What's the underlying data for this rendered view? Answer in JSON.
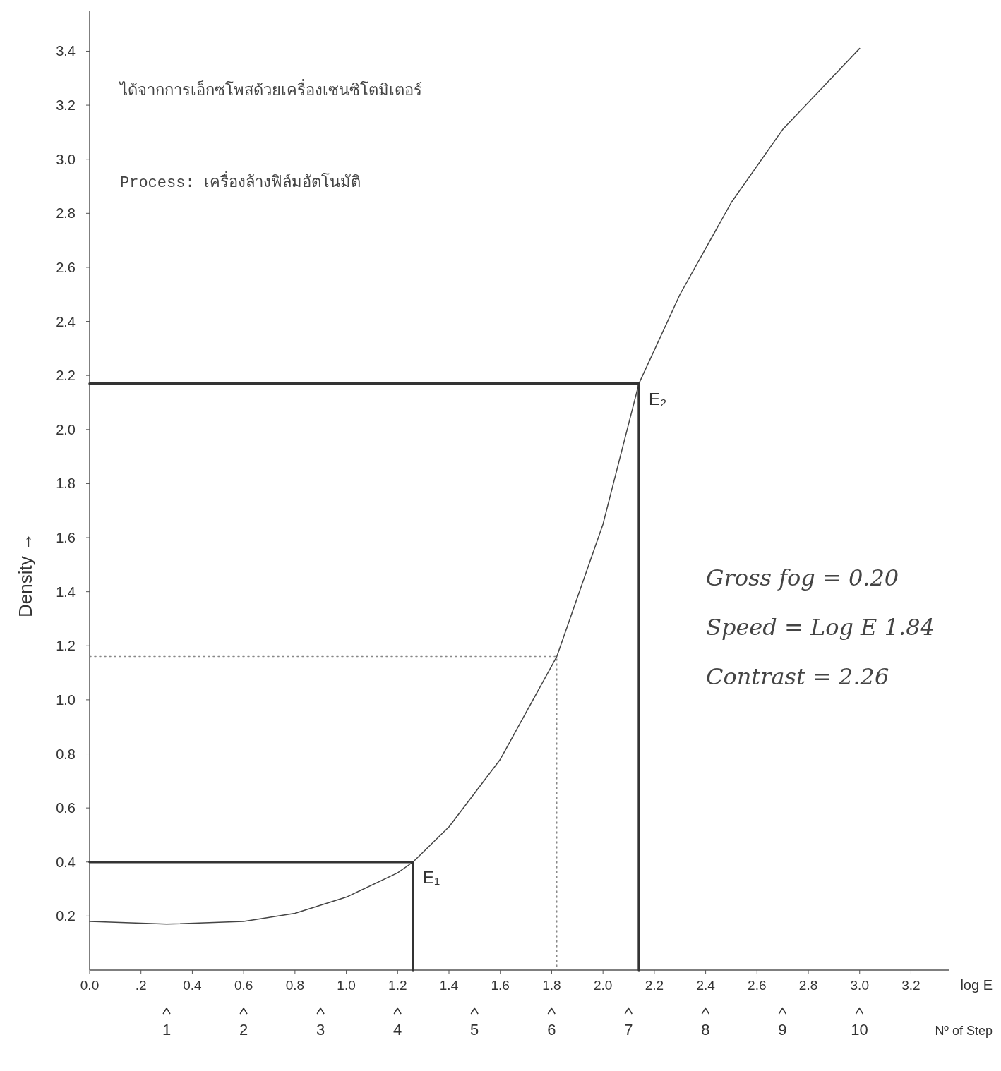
{
  "chart_data": {
    "type": "line",
    "xlabel": "log E",
    "ylabel": "Density →",
    "x2label": "Nº of Step",
    "xlim": [
      0,
      3.35
    ],
    "xticks": [
      {
        "value": 0,
        "label": "0.0"
      },
      {
        "value": 0.2,
        "label": ".2"
      },
      {
        "value": 0.4,
        "label": "0.4"
      },
      {
        "value": 0.6,
        "label": "0.6"
      },
      {
        "value": 0.8,
        "label": "0.8"
      },
      {
        "value": 1.0,
        "label": "1.0"
      },
      {
        "value": 1.2,
        "label": "1.2"
      },
      {
        "value": 1.4,
        "label": "1.4"
      },
      {
        "value": 1.6,
        "label": "1.6"
      },
      {
        "value": 1.8,
        "label": "1.8"
      },
      {
        "value": 2.0,
        "label": "2.0"
      },
      {
        "value": 2.2,
        "label": "2.2"
      },
      {
        "value": 2.4,
        "label": "2.4"
      },
      {
        "value": 2.6,
        "label": "2.6"
      },
      {
        "value": 2.8,
        "label": "2.8"
      },
      {
        "value": 3.0,
        "label": "3.0"
      },
      {
        "value": 3.2,
        "label": "3.2"
      }
    ],
    "x2lim": [
      0,
      11.17
    ],
    "x2ticks": [
      1,
      2,
      3,
      4,
      5,
      6,
      7,
      8,
      9,
      10
    ],
    "ylim": [
      0,
      3.55
    ],
    "yticks": [
      {
        "value": 0.2,
        "label": "0.2"
      },
      {
        "value": 0.4,
        "label": "0.4"
      },
      {
        "value": 0.6,
        "label": "0.6"
      },
      {
        "value": 0.8,
        "label": "0.8"
      },
      {
        "value": 1.0,
        "label": "1.0"
      },
      {
        "value": 1.2,
        "label": "1.2"
      },
      {
        "value": 1.4,
        "label": "1.4"
      },
      {
        "value": 1.6,
        "label": "1.6"
      },
      {
        "value": 1.8,
        "label": "1.8"
      },
      {
        "value": 2.0,
        "label": "2.0"
      },
      {
        "value": 2.2,
        "label": "2.2"
      },
      {
        "value": 2.4,
        "label": "2.4"
      },
      {
        "value": 2.6,
        "label": "2.6"
      },
      {
        "value": 2.8,
        "label": "2.8"
      },
      {
        "value": 3.0,
        "label": "3.0"
      },
      {
        "value": 3.2,
        "label": "3.2"
      },
      {
        "value": 3.4,
        "label": "3.4"
      }
    ],
    "grid": false,
    "line_style": "solid",
    "marker": "none",
    "series": [
      {
        "color": "#444444",
        "x": [
          0,
          0.3,
          0.6,
          0.8,
          1.0,
          1.2,
          1.26,
          1.4,
          1.6,
          1.82,
          2.0,
          2.14,
          2.3,
          2.5,
          2.7,
          2.9,
          3.0
        ],
        "values": [
          0.18,
          0.17,
          0.18,
          0.21,
          0.27,
          0.36,
          0.4,
          0.53,
          0.78,
          1.16,
          1.65,
          2.17,
          2.5,
          2.84,
          3.11,
          3.31,
          3.41
        ]
      },
      {
        "color": "#333333",
        "x": [
          0,
          2.14,
          2.14
        ],
        "values": [
          2.17,
          2.17,
          0
        ]
      },
      {
        "color": "#333333",
        "x": [
          0,
          1.26,
          1.26
        ],
        "values": [
          0.4,
          0.4,
          0
        ]
      },
      {
        "color": "#888888",
        "line_style": "dotted",
        "x": [
          0,
          1.82,
          1.82
        ],
        "values": [
          1.16,
          1.16,
          0
        ]
      }
    ],
    "annotations": [
      {
        "text": "E₂",
        "x": 2.14,
        "y": 2.17
      },
      {
        "text": "E₁",
        "x": 1.26,
        "y": 0.4
      },
      "ได้จากการเอ็กซโพสด้วยเครื่องเซนซิโตมิเตอร์",
      "Process: เครื่องล้างฟิล์มอัตโนมัติ",
      "Gross fog = 0.20",
      "Speed = Log E 1.84",
      "Contrast = 2.26"
    ]
  }
}
